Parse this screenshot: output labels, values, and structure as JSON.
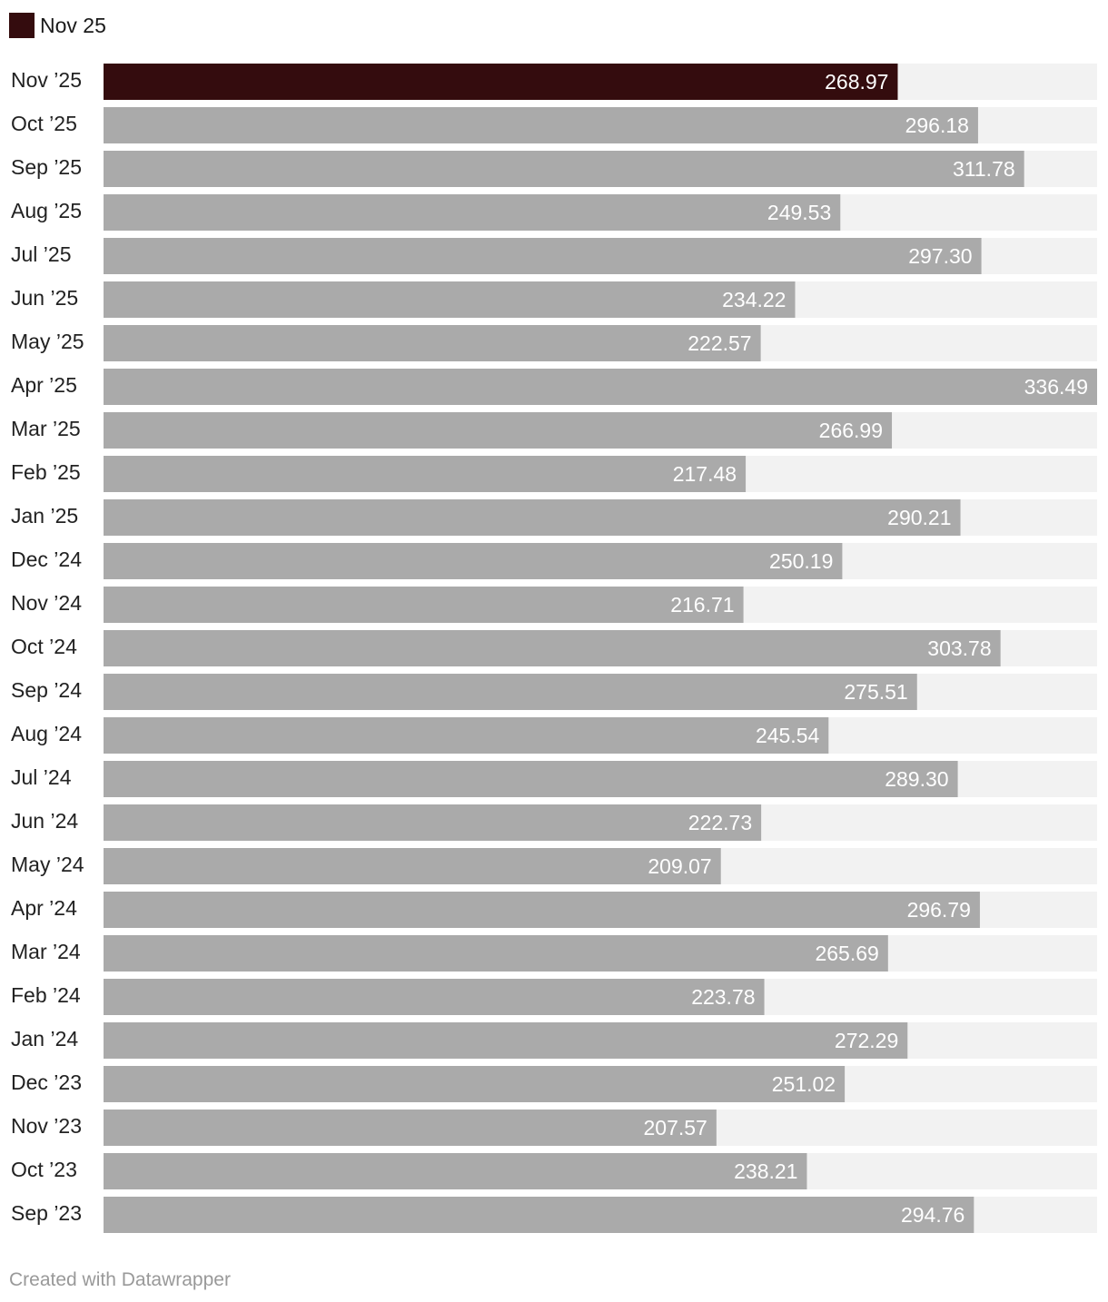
{
  "legend": {
    "label": "Nov 25",
    "color": "#340c0e"
  },
  "colors": {
    "highlight": "#340c0e",
    "bar": "#aaaaaa",
    "track": "#f2f2f2"
  },
  "chart_data": {
    "type": "bar",
    "orientation": "horizontal",
    "categories": [
      "Nov ’25",
      "Oct ’25",
      "Sep ’25",
      "Aug ’25",
      "Jul ’25",
      "Jun ’25",
      "May ’25",
      "Apr ’25",
      "Mar ’25",
      "Feb ’25",
      "Jan ’25",
      "Dec ’24",
      "Nov ’24",
      "Oct ’24",
      "Sep ’24",
      "Aug ’24",
      "Jul ’24",
      "Jun ’24",
      "May ’24",
      "Apr ’24",
      "Mar ’24",
      "Feb ’24",
      "Jan ’24",
      "Dec ’23",
      "Nov ’23",
      "Oct ’23",
      "Sep ’23"
    ],
    "values": [
      268.97,
      296.18,
      311.78,
      249.53,
      297.3,
      234.22,
      222.57,
      336.49,
      266.99,
      217.48,
      290.21,
      250.19,
      216.71,
      303.78,
      275.51,
      245.54,
      289.3,
      222.73,
      209.07,
      296.79,
      265.69,
      223.78,
      272.29,
      251.02,
      207.57,
      238.21,
      294.76
    ],
    "value_labels": [
      "268.97",
      "296.18",
      "311.78",
      "249.53",
      "297.30",
      "234.22",
      "222.57",
      "336.49",
      "266.99",
      "217.48",
      "290.21",
      "250.19",
      "216.71",
      "303.78",
      "275.51",
      "245.54",
      "289.30",
      "222.73",
      "209.07",
      "296.79",
      "265.69",
      "223.78",
      "272.29",
      "251.02",
      "207.57",
      "238.21",
      "294.76"
    ],
    "highlighted_category": "Nov ’25",
    "xlim": [
      0,
      336.49
    ],
    "grid": false,
    "legend_position": "top-left"
  },
  "footer": {
    "credit": "Created with Datawrapper"
  }
}
